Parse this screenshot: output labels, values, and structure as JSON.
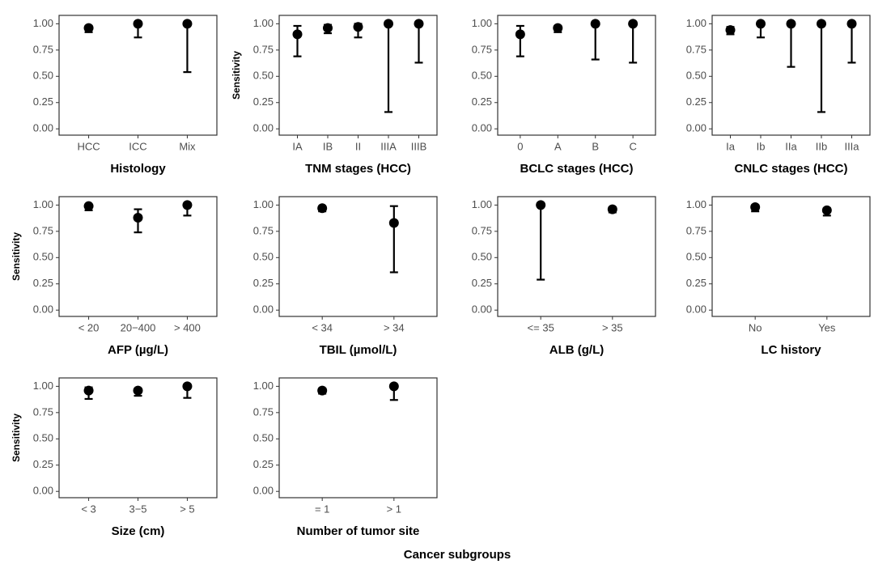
{
  "common_xlabel": "Cancer subgroups",
  "chart_data": [
    {
      "type": "errorbar",
      "xlabel": "Histology",
      "categories": [
        "HCC",
        "ICC",
        "Mix"
      ],
      "values": [
        0.96,
        1.0,
        1.0
      ],
      "lower": [
        0.92,
        0.87,
        0.54
      ],
      "upper": [
        0.98,
        1.0,
        1.0
      ],
      "ylim": [
        -0.06,
        1.08
      ],
      "yticks": [
        {
          "value": 0,
          "label": "0.00"
        },
        {
          "value": 0.25,
          "label": "0.25"
        },
        {
          "value": 0.5,
          "label": "0.50"
        },
        {
          "value": 0.75,
          "label": "0.75"
        },
        {
          "value": 1,
          "label": "1.00"
        }
      ],
      "color": "#000000"
    },
    {
      "type": "errorbar",
      "xlabel": "TNM stages (HCC)",
      "ylabel": "Sensitivity",
      "categories": [
        "IA",
        "IB",
        "II",
        "IIIA",
        "IIIB"
      ],
      "values": [
        0.9,
        0.96,
        0.97,
        1.0,
        1.0
      ],
      "lower": [
        0.69,
        0.91,
        0.87,
        0.16,
        0.63
      ],
      "upper": [
        0.98,
        0.99,
        1.0,
        1.0,
        1.0
      ],
      "ylim": [
        -0.06,
        1.08
      ],
      "yticks": [
        {
          "value": 0,
          "label": "0.00"
        },
        {
          "value": 0.25,
          "label": "0.25"
        },
        {
          "value": 0.5,
          "label": "0.50"
        },
        {
          "value": 0.75,
          "label": "0.75"
        },
        {
          "value": 1,
          "label": "1.00"
        }
      ],
      "color": "#000000"
    },
    {
      "type": "errorbar",
      "xlabel": "BCLC stages (HCC)",
      "categories": [
        "0",
        "A",
        "B",
        "C"
      ],
      "values": [
        0.9,
        0.96,
        1.0,
        1.0
      ],
      "lower": [
        0.69,
        0.92,
        0.66,
        0.63
      ],
      "upper": [
        0.98,
        0.98,
        1.0,
        1.0
      ],
      "ylim": [
        -0.06,
        1.08
      ],
      "yticks": [
        {
          "value": 0,
          "label": "0.00"
        },
        {
          "value": 0.25,
          "label": "0.25"
        },
        {
          "value": 0.5,
          "label": "0.50"
        },
        {
          "value": 0.75,
          "label": "0.75"
        },
        {
          "value": 1,
          "label": "1.00"
        }
      ],
      "color": "#000000"
    },
    {
      "type": "errorbar",
      "xlabel": "CNLC stages (HCC)",
      "categories": [
        "Ia",
        "Ib",
        "IIa",
        "IIb",
        "IIIa"
      ],
      "values": [
        0.94,
        1.0,
        1.0,
        1.0,
        1.0
      ],
      "lower": [
        0.9,
        0.87,
        0.59,
        0.16,
        0.63
      ],
      "upper": [
        0.97,
        1.0,
        1.0,
        1.0,
        1.0
      ],
      "ylim": [
        -0.06,
        1.08
      ],
      "yticks": [
        {
          "value": 0,
          "label": "0.00"
        },
        {
          "value": 0.25,
          "label": "0.25"
        },
        {
          "value": 0.5,
          "label": "0.50"
        },
        {
          "value": 0.75,
          "label": "0.75"
        },
        {
          "value": 1,
          "label": "1.00"
        }
      ],
      "color": "#000000"
    },
    {
      "type": "errorbar",
      "xlabel": "AFP (µg/L)",
      "ylabel": "Sensitivity",
      "categories": [
        "< 20",
        "20−400",
        "> 400"
      ],
      "values": [
        0.99,
        0.88,
        1.0
      ],
      "lower": [
        0.95,
        0.74,
        0.9
      ],
      "upper": [
        1.0,
        0.96,
        1.0
      ],
      "ylim": [
        -0.06,
        1.08
      ],
      "yticks": [
        {
          "value": 0,
          "label": "0.00"
        },
        {
          "value": 0.25,
          "label": "0.25"
        },
        {
          "value": 0.5,
          "label": "0.50"
        },
        {
          "value": 0.75,
          "label": "0.75"
        },
        {
          "value": 1,
          "label": "1.00"
        }
      ],
      "color": "#000000"
    },
    {
      "type": "errorbar",
      "xlabel": "TBIL (µmol/L)",
      "categories": [
        "< 34",
        "> 34"
      ],
      "values": [
        0.97,
        0.83
      ],
      "lower": [
        0.94,
        0.36
      ],
      "upper": [
        0.98,
        0.99
      ],
      "ylim": [
        -0.06,
        1.08
      ],
      "yticks": [
        {
          "value": 0,
          "label": "0.00"
        },
        {
          "value": 0.25,
          "label": "0.25"
        },
        {
          "value": 0.5,
          "label": "0.50"
        },
        {
          "value": 0.75,
          "label": "0.75"
        },
        {
          "value": 1,
          "label": "1.00"
        }
      ],
      "color": "#000000"
    },
    {
      "type": "errorbar",
      "xlabel": "ALB (g/L)",
      "categories": [
        "<= 35",
        "> 35"
      ],
      "values": [
        1.0,
        0.96
      ],
      "lower": [
        0.29,
        0.93
      ],
      "upper": [
        1.0,
        0.98
      ],
      "ylim": [
        -0.06,
        1.08
      ],
      "yticks": [
        {
          "value": 0,
          "label": "0.00"
        },
        {
          "value": 0.25,
          "label": "0.25"
        },
        {
          "value": 0.5,
          "label": "0.50"
        },
        {
          "value": 0.75,
          "label": "0.75"
        },
        {
          "value": 1,
          "label": "1.00"
        }
      ],
      "color": "#000000"
    },
    {
      "type": "errorbar",
      "xlabel": "LC history",
      "categories": [
        "No",
        "Yes"
      ],
      "values": [
        0.98,
        0.95
      ],
      "lower": [
        0.94,
        0.9
      ],
      "upper": [
        1.0,
        0.97
      ],
      "ylim": [
        -0.06,
        1.08
      ],
      "yticks": [
        {
          "value": 0,
          "label": "0.00"
        },
        {
          "value": 0.25,
          "label": "0.25"
        },
        {
          "value": 0.5,
          "label": "0.50"
        },
        {
          "value": 0.75,
          "label": "0.75"
        },
        {
          "value": 1,
          "label": "1.00"
        }
      ],
      "color": "#000000"
    },
    {
      "type": "errorbar",
      "xlabel": "Size (cm)",
      "ylabel": "Sensitivity",
      "categories": [
        "< 3",
        "3−5",
        "> 5"
      ],
      "values": [
        0.96,
        0.96,
        1.0
      ],
      "lower": [
        0.88,
        0.91,
        0.89
      ],
      "upper": [
        0.99,
        0.98,
        1.0
      ],
      "ylim": [
        -0.06,
        1.08
      ],
      "yticks": [
        {
          "value": 0,
          "label": "0.00"
        },
        {
          "value": 0.25,
          "label": "0.25"
        },
        {
          "value": 0.5,
          "label": "0.50"
        },
        {
          "value": 0.75,
          "label": "0.75"
        },
        {
          "value": 1,
          "label": "1.00"
        }
      ],
      "color": "#000000"
    },
    {
      "type": "errorbar",
      "xlabel": "Number of tumor site",
      "categories": [
        "= 1",
        "> 1"
      ],
      "values": [
        0.96,
        1.0
      ],
      "lower": [
        0.93,
        0.87
      ],
      "upper": [
        0.98,
        1.0
      ],
      "ylim": [
        -0.06,
        1.08
      ],
      "yticks": [
        {
          "value": 0,
          "label": "0.00"
        },
        {
          "value": 0.25,
          "label": "0.25"
        },
        {
          "value": 0.5,
          "label": "0.50"
        },
        {
          "value": 0.75,
          "label": "0.75"
        },
        {
          "value": 1,
          "label": "1.00"
        }
      ],
      "color": "#000000"
    }
  ]
}
